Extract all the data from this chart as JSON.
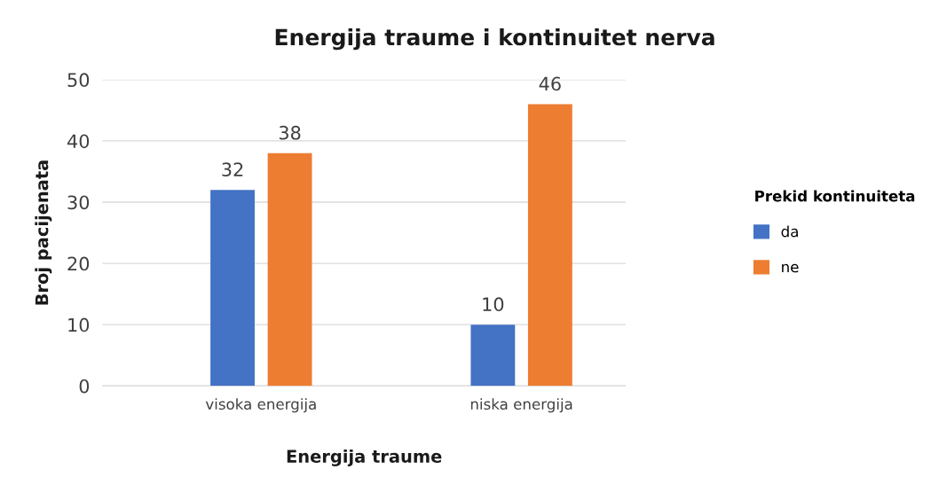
{
  "chart_data": {
    "type": "bar",
    "title": "Energija traume i kontinuitet nerva",
    "xlabel": "Energija traume",
    "ylabel": "Broj pacijenata",
    "legend_title": "Prekid kontinuiteta",
    "categories": [
      "visoka energija",
      "niska energija"
    ],
    "series": [
      {
        "name": "da",
        "color": "#4472c4",
        "values": [
          32,
          10
        ]
      },
      {
        "name": "ne",
        "color": "#ed7d31",
        "values": [
          38,
          46
        ]
      }
    ],
    "ylim": [
      0,
      50
    ],
    "yticks": [
      0,
      10,
      20,
      30,
      40,
      50
    ],
    "grid": "y",
    "legend": "right",
    "data_labels": true
  }
}
